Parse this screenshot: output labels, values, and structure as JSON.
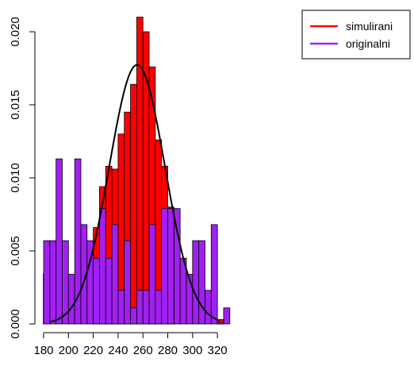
{
  "chart_data": {
    "type": "bar",
    "bin_width": 5,
    "xlim": [
      180,
      325
    ],
    "ylim": [
      0,
      0.021
    ],
    "x_ticks": [
      "180",
      "200",
      "220",
      "240",
      "260",
      "280",
      "300",
      "320"
    ],
    "y_ticks": [
      "0.000",
      "0.005",
      "0.010",
      "0.015",
      "0.020"
    ],
    "grid": false,
    "legend_position": "top-right",
    "legend": [
      {
        "label": "simulirani",
        "color": "#ff0000"
      },
      {
        "label": "originalni",
        "color": "#a020f0"
      }
    ],
    "series": [
      {
        "name": "simulirani",
        "color": "#ff0000",
        "bins": [
          {
            "start": 220,
            "value": 0.0066
          },
          {
            "start": 225,
            "value": 0.0094
          },
          {
            "start": 230,
            "value": 0.0108
          },
          {
            "start": 235,
            "value": 0.0106
          },
          {
            "start": 240,
            "value": 0.013
          },
          {
            "start": 245,
            "value": 0.0145
          },
          {
            "start": 250,
            "value": 0.0164
          },
          {
            "start": 255,
            "value": 0.021
          },
          {
            "start": 260,
            "value": 0.02
          },
          {
            "start": 265,
            "value": 0.0176
          },
          {
            "start": 270,
            "value": 0.0126
          },
          {
            "start": 275,
            "value": 0.0108
          },
          {
            "start": 280,
            "value": 0.008
          },
          {
            "start": 320,
            "value": 0.0003
          }
        ]
      },
      {
        "name": "originalni",
        "color": "#a020f0",
        "bins": [
          {
            "start": 175,
            "value": 0.0034
          },
          {
            "start": 180,
            "value": 0.0057
          },
          {
            "start": 185,
            "value": 0.0057
          },
          {
            "start": 190,
            "value": 0.0113
          },
          {
            "start": 195,
            "value": 0.0057
          },
          {
            "start": 200,
            "value": 0.0034
          },
          {
            "start": 205,
            "value": 0.0113
          },
          {
            "start": 210,
            "value": 0.0068
          },
          {
            "start": 215,
            "value": 0.0057
          },
          {
            "start": 220,
            "value": 0.0045
          },
          {
            "start": 225,
            "value": 0.0079
          },
          {
            "start": 230,
            "value": 0.0045
          },
          {
            "start": 235,
            "value": 0.0068
          },
          {
            "start": 240,
            "value": 0.0023
          },
          {
            "start": 245,
            "value": 0.0057
          },
          {
            "start": 250,
            "value": 0.0011
          },
          {
            "start": 255,
            "value": 0.0023
          },
          {
            "start": 260,
            "value": 0.0023
          },
          {
            "start": 265,
            "value": 0.0068
          },
          {
            "start": 270,
            "value": 0.0023
          },
          {
            "start": 275,
            "value": 0.0079
          },
          {
            "start": 280,
            "value": 0.0079
          },
          {
            "start": 285,
            "value": 0.0079
          },
          {
            "start": 290,
            "value": 0.0045
          },
          {
            "start": 295,
            "value": 0.0034
          },
          {
            "start": 300,
            "value": 0.0057
          },
          {
            "start": 305,
            "value": 0.0057
          },
          {
            "start": 310,
            "value": 0.0023
          },
          {
            "start": 315,
            "value": 0.0068
          },
          {
            "start": 320,
            "value": 0.0001
          },
          {
            "start": 325,
            "value": 0.0011
          }
        ]
      }
    ],
    "curve": {
      "type": "normal_density",
      "color": "#000000",
      "x_range": [
        185,
        322
      ],
      "mean": 255.3,
      "sd": 22.5
    }
  }
}
